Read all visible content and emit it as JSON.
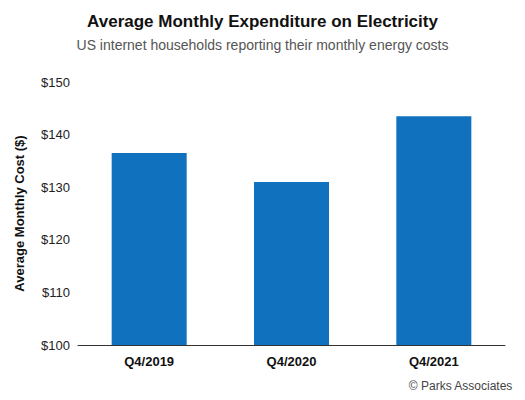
{
  "chart_data": {
    "type": "bar",
    "title": "Average Monthly Expenditure on Electricity",
    "subtitle": "US internet households reporting their monthly energy costs",
    "y_label": "Average Monthly Cost ($)",
    "categories": [
      "Q4/2019",
      "Q4/2020",
      "Q4/2021"
    ],
    "values": [
      136.5,
      131,
      143.5
    ],
    "color": "#1071be",
    "ylim": [
      100,
      150
    ],
    "yticks": [
      {
        "value": 100,
        "label": "$100"
      },
      {
        "value": 110,
        "label": "$110"
      },
      {
        "value": 120,
        "label": "$120"
      },
      {
        "value": 130,
        "label": "$130"
      },
      {
        "value": 140,
        "label": "$140"
      },
      {
        "value": 150,
        "label": "$150"
      }
    ],
    "grid": false,
    "annotations": [
      "© Parks Associates"
    ]
  }
}
